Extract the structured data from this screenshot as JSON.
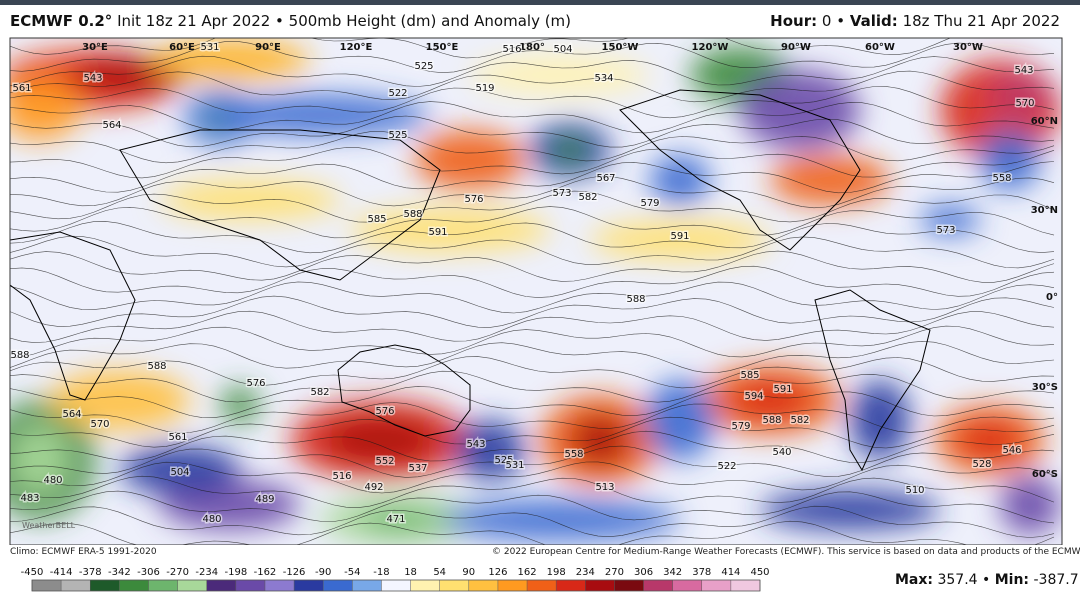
{
  "header": {
    "model": "ECMWF 0.2°",
    "title": "Init 18z 21 Apr 2022 • 500mb Height (dm) and Anomaly (m)",
    "hour_label": "Hour:",
    "hour": 0,
    "separator": "•",
    "valid_label": "Valid:",
    "valid": "18z Thu 21 Apr 2022"
  },
  "map": {
    "longitude_labels": [
      "30°E",
      "60°E",
      "90°E",
      "120°E",
      "150°E",
      "180°",
      "150°W",
      "120°W",
      "90°W",
      "60°W",
      "30°W"
    ],
    "latitude_labels": [
      "60°N",
      "30°N",
      "0°",
      "30°S",
      "60°S"
    ],
    "contour_labels": [
      561,
      543,
      564,
      531,
      525,
      534,
      519,
      522,
      525,
      573,
      567,
      582,
      579,
      576,
      585,
      588,
      591,
      591,
      588,
      588,
      588,
      576,
      582,
      576,
      561,
      570,
      564,
      552,
      537,
      543,
      525,
      531,
      558,
      513,
      585,
      591,
      594,
      579,
      588,
      582,
      540,
      522,
      510,
      528,
      546,
      573,
      543,
      570,
      504,
      480,
      483,
      489,
      480,
      471,
      492,
      516,
      516,
      504,
      558
    ],
    "watermark": "WeatherBELL"
  },
  "footer": {
    "climo": "Climo: ECMWF ERA-5 1991-2020",
    "copyright": "© 2022 European Centre for Medium-Range Weather Forecasts (ECMWF). This service is based on data and products of the ECMWF."
  },
  "colorbar": {
    "ticks": [
      -450,
      -414,
      -378,
      -342,
      -306,
      -270,
      -234,
      -198,
      -162,
      -126,
      -90,
      -54,
      -18,
      18,
      54,
      90,
      126,
      162,
      198,
      234,
      270,
      306,
      342,
      378,
      414,
      450
    ],
    "colors": [
      "#8c8c8c",
      "#b4b4b4",
      "#1e5a2a",
      "#3c8a3c",
      "#6db56d",
      "#a8d89a",
      "#4b2a7a",
      "#6a4aa8",
      "#8c7ad0",
      "#2a3aa0",
      "#3a6ad0",
      "#78a8e8",
      "#f4f6ff",
      "#fff2b0",
      "#ffe070",
      "#ffc040",
      "#ff9a20",
      "#f06018",
      "#d82818",
      "#a80c10",
      "#7a0a10",
      "#b8386a",
      "#d86aa0",
      "#e8a0c8",
      "#f0c8e0"
    ]
  },
  "stats": {
    "max_label": "Max:",
    "max": 357.4,
    "separator": "•",
    "min_label": "Min:",
    "min": -387.7
  }
}
